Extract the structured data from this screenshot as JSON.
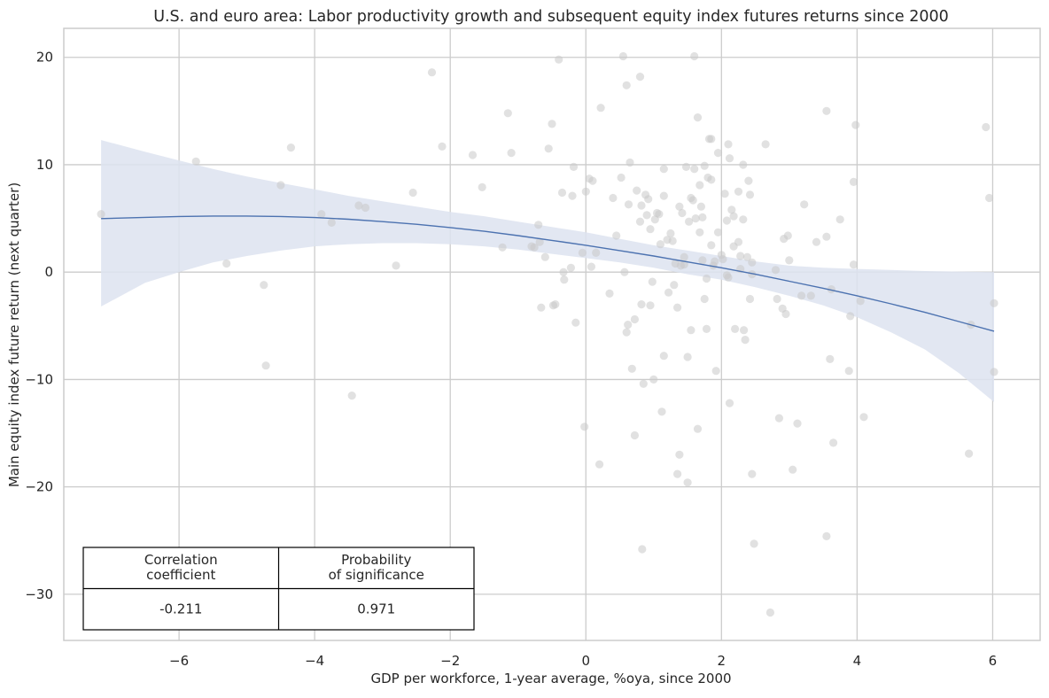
{
  "chart_data": {
    "type": "scatter",
    "title": "U.S. and euro area: Labor productivity growth and subsequent equity index futures returns since 2000",
    "xlabel": "GDP per workforce, 1-year average, %oya, since 2000",
    "ylabel": "Main equity index future return (next quarter)",
    "xlim": [
      -7.7,
      6.7
    ],
    "ylim": [
      -34.3,
      22.7
    ],
    "x_ticks": [
      -6,
      -4,
      -2,
      0,
      2,
      4,
      6
    ],
    "x_tick_labels": [
      "−6",
      "−4",
      "−2",
      "0",
      "2",
      "4",
      "6"
    ],
    "y_ticks": [
      -30,
      -20,
      -10,
      0,
      10,
      20
    ],
    "y_tick_labels": [
      "−30",
      "−20",
      "−10",
      "0",
      "10",
      "20"
    ],
    "grid": true,
    "colors": {
      "points": "#c8c8c8",
      "fit_line": "#4c72b0",
      "confidence_band": "#dde3f0",
      "grid": "#cccccc",
      "spine": "#cccccc"
    },
    "points": [
      [
        -7.15,
        5.4
      ],
      [
        -5.75,
        10.3
      ],
      [
        -5.3,
        0.8
      ],
      [
        -4.75,
        -1.2
      ],
      [
        -4.72,
        -8.7
      ],
      [
        -4.5,
        8.1
      ],
      [
        -4.35,
        11.6
      ],
      [
        -3.9,
        5.4
      ],
      [
        -3.75,
        4.6
      ],
      [
        -3.45,
        -11.5
      ],
      [
        -3.35,
        6.2
      ],
      [
        -3.25,
        6.0
      ],
      [
        -2.8,
        0.6
      ],
      [
        -2.55,
        7.4
      ],
      [
        -2.27,
        18.6
      ],
      [
        -2.12,
        11.7
      ],
      [
        -1.67,
        10.9
      ],
      [
        -1.53,
        7.9
      ],
      [
        -1.23,
        2.3
      ],
      [
        -1.15,
        14.8
      ],
      [
        -1.1,
        11.1
      ],
      [
        -0.8,
        2.4
      ],
      [
        -0.76,
        2.3
      ],
      [
        -0.7,
        4.4
      ],
      [
        -0.68,
        2.8
      ],
      [
        -0.66,
        -3.3
      ],
      [
        -0.6,
        1.4
      ],
      [
        -0.55,
        11.5
      ],
      [
        -0.5,
        13.8
      ],
      [
        -0.48,
        -3.1
      ],
      [
        -0.45,
        -3.0
      ],
      [
        -0.4,
        19.8
      ],
      [
        -0.35,
        7.4
      ],
      [
        -0.33,
        0.0
      ],
      [
        -0.32,
        -0.7
      ],
      [
        -0.22,
        0.4
      ],
      [
        -0.2,
        7.1
      ],
      [
        -0.18,
        9.8
      ],
      [
        -0.15,
        -4.7
      ],
      [
        -0.05,
        1.8
      ],
      [
        -0.02,
        -14.4
      ],
      [
        0.0,
        7.5
      ],
      [
        0.05,
        8.7
      ],
      [
        0.08,
        0.5
      ],
      [
        0.1,
        8.5
      ],
      [
        0.15,
        1.8
      ],
      [
        0.2,
        -17.9
      ],
      [
        0.22,
        15.3
      ],
      [
        0.35,
        -2.0
      ],
      [
        0.4,
        6.9
      ],
      [
        0.45,
        3.4
      ],
      [
        0.52,
        8.8
      ],
      [
        0.55,
        20.1
      ],
      [
        0.57,
        0.0
      ],
      [
        0.6,
        17.4
      ],
      [
        0.6,
        -5.6
      ],
      [
        0.62,
        -4.9
      ],
      [
        0.63,
        6.3
      ],
      [
        0.65,
        10.2
      ],
      [
        0.68,
        -9.0
      ],
      [
        0.72,
        -15.2
      ],
      [
        0.72,
        -4.4
      ],
      [
        0.75,
        7.6
      ],
      [
        0.8,
        18.2
      ],
      [
        0.8,
        4.7
      ],
      [
        0.82,
        6.2
      ],
      [
        0.82,
        -3.0
      ],
      [
        0.83,
        -25.8
      ],
      [
        0.85,
        -10.4
      ],
      [
        0.88,
        7.2
      ],
      [
        0.9,
        5.3
      ],
      [
        0.92,
        6.8
      ],
      [
        0.95,
        4.0
      ],
      [
        0.95,
        -3.1
      ],
      [
        0.98,
        -0.9
      ],
      [
        1.0,
        -10.0
      ],
      [
        1.02,
        4.9
      ],
      [
        1.05,
        5.5
      ],
      [
        1.08,
        5.4
      ],
      [
        1.1,
        2.6
      ],
      [
        1.12,
        -13.0
      ],
      [
        1.15,
        9.6
      ],
      [
        1.15,
        7.1
      ],
      [
        1.15,
        -7.8
      ],
      [
        1.2,
        3.0
      ],
      [
        1.22,
        -1.9
      ],
      [
        1.25,
        3.6
      ],
      [
        1.28,
        2.9
      ],
      [
        1.3,
        -1.2
      ],
      [
        1.32,
        0.8
      ],
      [
        1.35,
        -18.8
      ],
      [
        1.35,
        -3.3
      ],
      [
        1.38,
        6.1
      ],
      [
        1.38,
        -17.0
      ],
      [
        1.4,
        0.6
      ],
      [
        1.42,
        5.5
      ],
      [
        1.45,
        1.4
      ],
      [
        1.45,
        0.7
      ],
      [
        1.48,
        9.8
      ],
      [
        1.5,
        -7.9
      ],
      [
        1.5,
        -19.6
      ],
      [
        1.52,
        4.7
      ],
      [
        1.55,
        6.9
      ],
      [
        1.55,
        -5.4
      ],
      [
        1.58,
        6.7
      ],
      [
        1.6,
        20.1
      ],
      [
        1.6,
        9.6
      ],
      [
        1.62,
        5.0
      ],
      [
        1.65,
        14.4
      ],
      [
        1.65,
        -14.6
      ],
      [
        1.68,
        8.1
      ],
      [
        1.68,
        3.7
      ],
      [
        1.7,
        6.1
      ],
      [
        1.72,
        1.1
      ],
      [
        1.72,
        5.1
      ],
      [
        1.75,
        9.9
      ],
      [
        1.75,
        -2.5
      ],
      [
        1.78,
        -0.6
      ],
      [
        1.78,
        -5.3
      ],
      [
        1.8,
        8.8
      ],
      [
        1.82,
        12.4
      ],
      [
        1.85,
        12.4
      ],
      [
        1.85,
        8.6
      ],
      [
        1.85,
        2.5
      ],
      [
        1.88,
        0.6
      ],
      [
        1.9,
        1.0
      ],
      [
        1.92,
        -9.2
      ],
      [
        1.95,
        11.1
      ],
      [
        1.95,
        3.7
      ],
      [
        2.0,
        1.6
      ],
      [
        2.02,
        1.2
      ],
      [
        2.05,
        7.3
      ],
      [
        2.08,
        4.8
      ],
      [
        2.08,
        -0.3
      ],
      [
        2.1,
        -0.5
      ],
      [
        2.1,
        11.9
      ],
      [
        2.12,
        10.6
      ],
      [
        2.12,
        -12.2
      ],
      [
        2.15,
        5.8
      ],
      [
        2.18,
        2.4
      ],
      [
        2.18,
        5.2
      ],
      [
        2.2,
        -5.3
      ],
      [
        2.25,
        7.5
      ],
      [
        2.25,
        2.8
      ],
      [
        2.28,
        1.5
      ],
      [
        2.28,
        0.3
      ],
      [
        2.32,
        10.0
      ],
      [
        2.32,
        4.9
      ],
      [
        2.33,
        -5.4
      ],
      [
        2.35,
        -6.3
      ],
      [
        2.38,
        1.4
      ],
      [
        2.4,
        8.5
      ],
      [
        2.42,
        7.2
      ],
      [
        2.42,
        -2.5
      ],
      [
        2.45,
        -0.2
      ],
      [
        2.45,
        0.9
      ],
      [
        2.45,
        -18.8
      ],
      [
        2.48,
        -25.3
      ],
      [
        2.65,
        11.9
      ],
      [
        2.72,
        -31.7
      ],
      [
        2.8,
        0.2
      ],
      [
        2.82,
        -2.5
      ],
      [
        2.85,
        -13.6
      ],
      [
        2.9,
        -3.4
      ],
      [
        2.92,
        3.1
      ],
      [
        2.95,
        -3.9
      ],
      [
        2.98,
        3.4
      ],
      [
        3.0,
        1.1
      ],
      [
        3.05,
        -18.4
      ],
      [
        3.12,
        -14.1
      ],
      [
        3.18,
        -2.2
      ],
      [
        3.22,
        6.3
      ],
      [
        3.32,
        -2.2
      ],
      [
        3.4,
        2.8
      ],
      [
        3.55,
        3.3
      ],
      [
        3.55,
        15.0
      ],
      [
        3.55,
        -24.6
      ],
      [
        3.6,
        -8.1
      ],
      [
        3.62,
        -1.6
      ],
      [
        3.65,
        -15.9
      ],
      [
        3.75,
        4.9
      ],
      [
        3.88,
        -9.2
      ],
      [
        3.9,
        -4.1
      ],
      [
        3.95,
        0.7
      ],
      [
        3.95,
        8.4
      ],
      [
        3.98,
        13.7
      ],
      [
        4.05,
        -2.7
      ],
      [
        4.1,
        -13.5
      ],
      [
        5.65,
        -16.9
      ],
      [
        5.68,
        -4.9
      ],
      [
        5.9,
        13.5
      ],
      [
        5.95,
        6.9
      ],
      [
        6.02,
        -9.3
      ],
      [
        6.02,
        -2.9
      ]
    ],
    "fit_curve": [
      [
        -7.15,
        4.98
      ],
      [
        -6.5,
        5.1
      ],
      [
        -6.0,
        5.18
      ],
      [
        -5.5,
        5.22
      ],
      [
        -5.0,
        5.22
      ],
      [
        -4.5,
        5.18
      ],
      [
        -4.0,
        5.08
      ],
      [
        -3.5,
        4.92
      ],
      [
        -3.0,
        4.7
      ],
      [
        -2.5,
        4.45
      ],
      [
        -2.0,
        4.15
      ],
      [
        -1.5,
        3.8
      ],
      [
        -1.0,
        3.4
      ],
      [
        -0.5,
        2.95
      ],
      [
        0.0,
        2.5
      ],
      [
        0.5,
        2.0
      ],
      [
        1.0,
        1.5
      ],
      [
        1.5,
        0.95
      ],
      [
        2.0,
        0.4
      ],
      [
        2.5,
        -0.2
      ],
      [
        3.0,
        -0.85
      ],
      [
        3.5,
        -1.5
      ],
      [
        4.0,
        -2.2
      ],
      [
        4.5,
        -2.95
      ],
      [
        5.0,
        -3.75
      ],
      [
        5.5,
        -4.6
      ],
      [
        6.02,
        -5.5
      ]
    ],
    "ci_upper": [
      [
        -7.15,
        12.3
      ],
      [
        -6.5,
        11.2
      ],
      [
        -6.0,
        10.4
      ],
      [
        -5.5,
        9.6
      ],
      [
        -5.0,
        8.9
      ],
      [
        -4.5,
        8.3
      ],
      [
        -4.0,
        7.7
      ],
      [
        -3.5,
        7.1
      ],
      [
        -3.0,
        6.6
      ],
      [
        -2.5,
        6.1
      ],
      [
        -2.0,
        5.6
      ],
      [
        -1.5,
        5.2
      ],
      [
        -1.0,
        4.7
      ],
      [
        -0.5,
        4.2
      ],
      [
        0.0,
        3.7
      ],
      [
        0.5,
        3.1
      ],
      [
        1.0,
        2.5
      ],
      [
        1.5,
        2.0
      ],
      [
        2.0,
        1.5
      ],
      [
        2.5,
        1.0
      ],
      [
        3.0,
        0.6
      ],
      [
        3.5,
        0.4
      ],
      [
        4.0,
        0.3
      ],
      [
        4.5,
        0.2
      ],
      [
        5.0,
        0.1
      ],
      [
        5.5,
        0.05
      ],
      [
        6.02,
        0.0
      ]
    ],
    "ci_lower": [
      [
        -7.15,
        -3.2
      ],
      [
        -6.5,
        -1.0
      ],
      [
        -6.0,
        0.0
      ],
      [
        -5.5,
        0.9
      ],
      [
        -5.0,
        1.5
      ],
      [
        -4.5,
        2.0
      ],
      [
        -4.0,
        2.4
      ],
      [
        -3.5,
        2.6
      ],
      [
        -3.0,
        2.7
      ],
      [
        -2.5,
        2.7
      ],
      [
        -2.0,
        2.6
      ],
      [
        -1.5,
        2.4
      ],
      [
        -1.0,
        2.1
      ],
      [
        -0.5,
        1.7
      ],
      [
        0.0,
        1.3
      ],
      [
        0.5,
        0.9
      ],
      [
        1.0,
        0.4
      ],
      [
        1.5,
        -0.2
      ],
      [
        2.0,
        -0.7
      ],
      [
        2.5,
        -1.4
      ],
      [
        3.0,
        -2.2
      ],
      [
        3.5,
        -3.1
      ],
      [
        4.0,
        -4.2
      ],
      [
        4.5,
        -5.6
      ],
      [
        5.0,
        -7.2
      ],
      [
        5.5,
        -9.4
      ],
      [
        6.02,
        -12.1
      ]
    ],
    "stats_table": {
      "headers": [
        "Correlation\ncoefficient",
        "Probability\nof significance"
      ],
      "values": [
        "-0.211",
        "0.971"
      ]
    }
  }
}
